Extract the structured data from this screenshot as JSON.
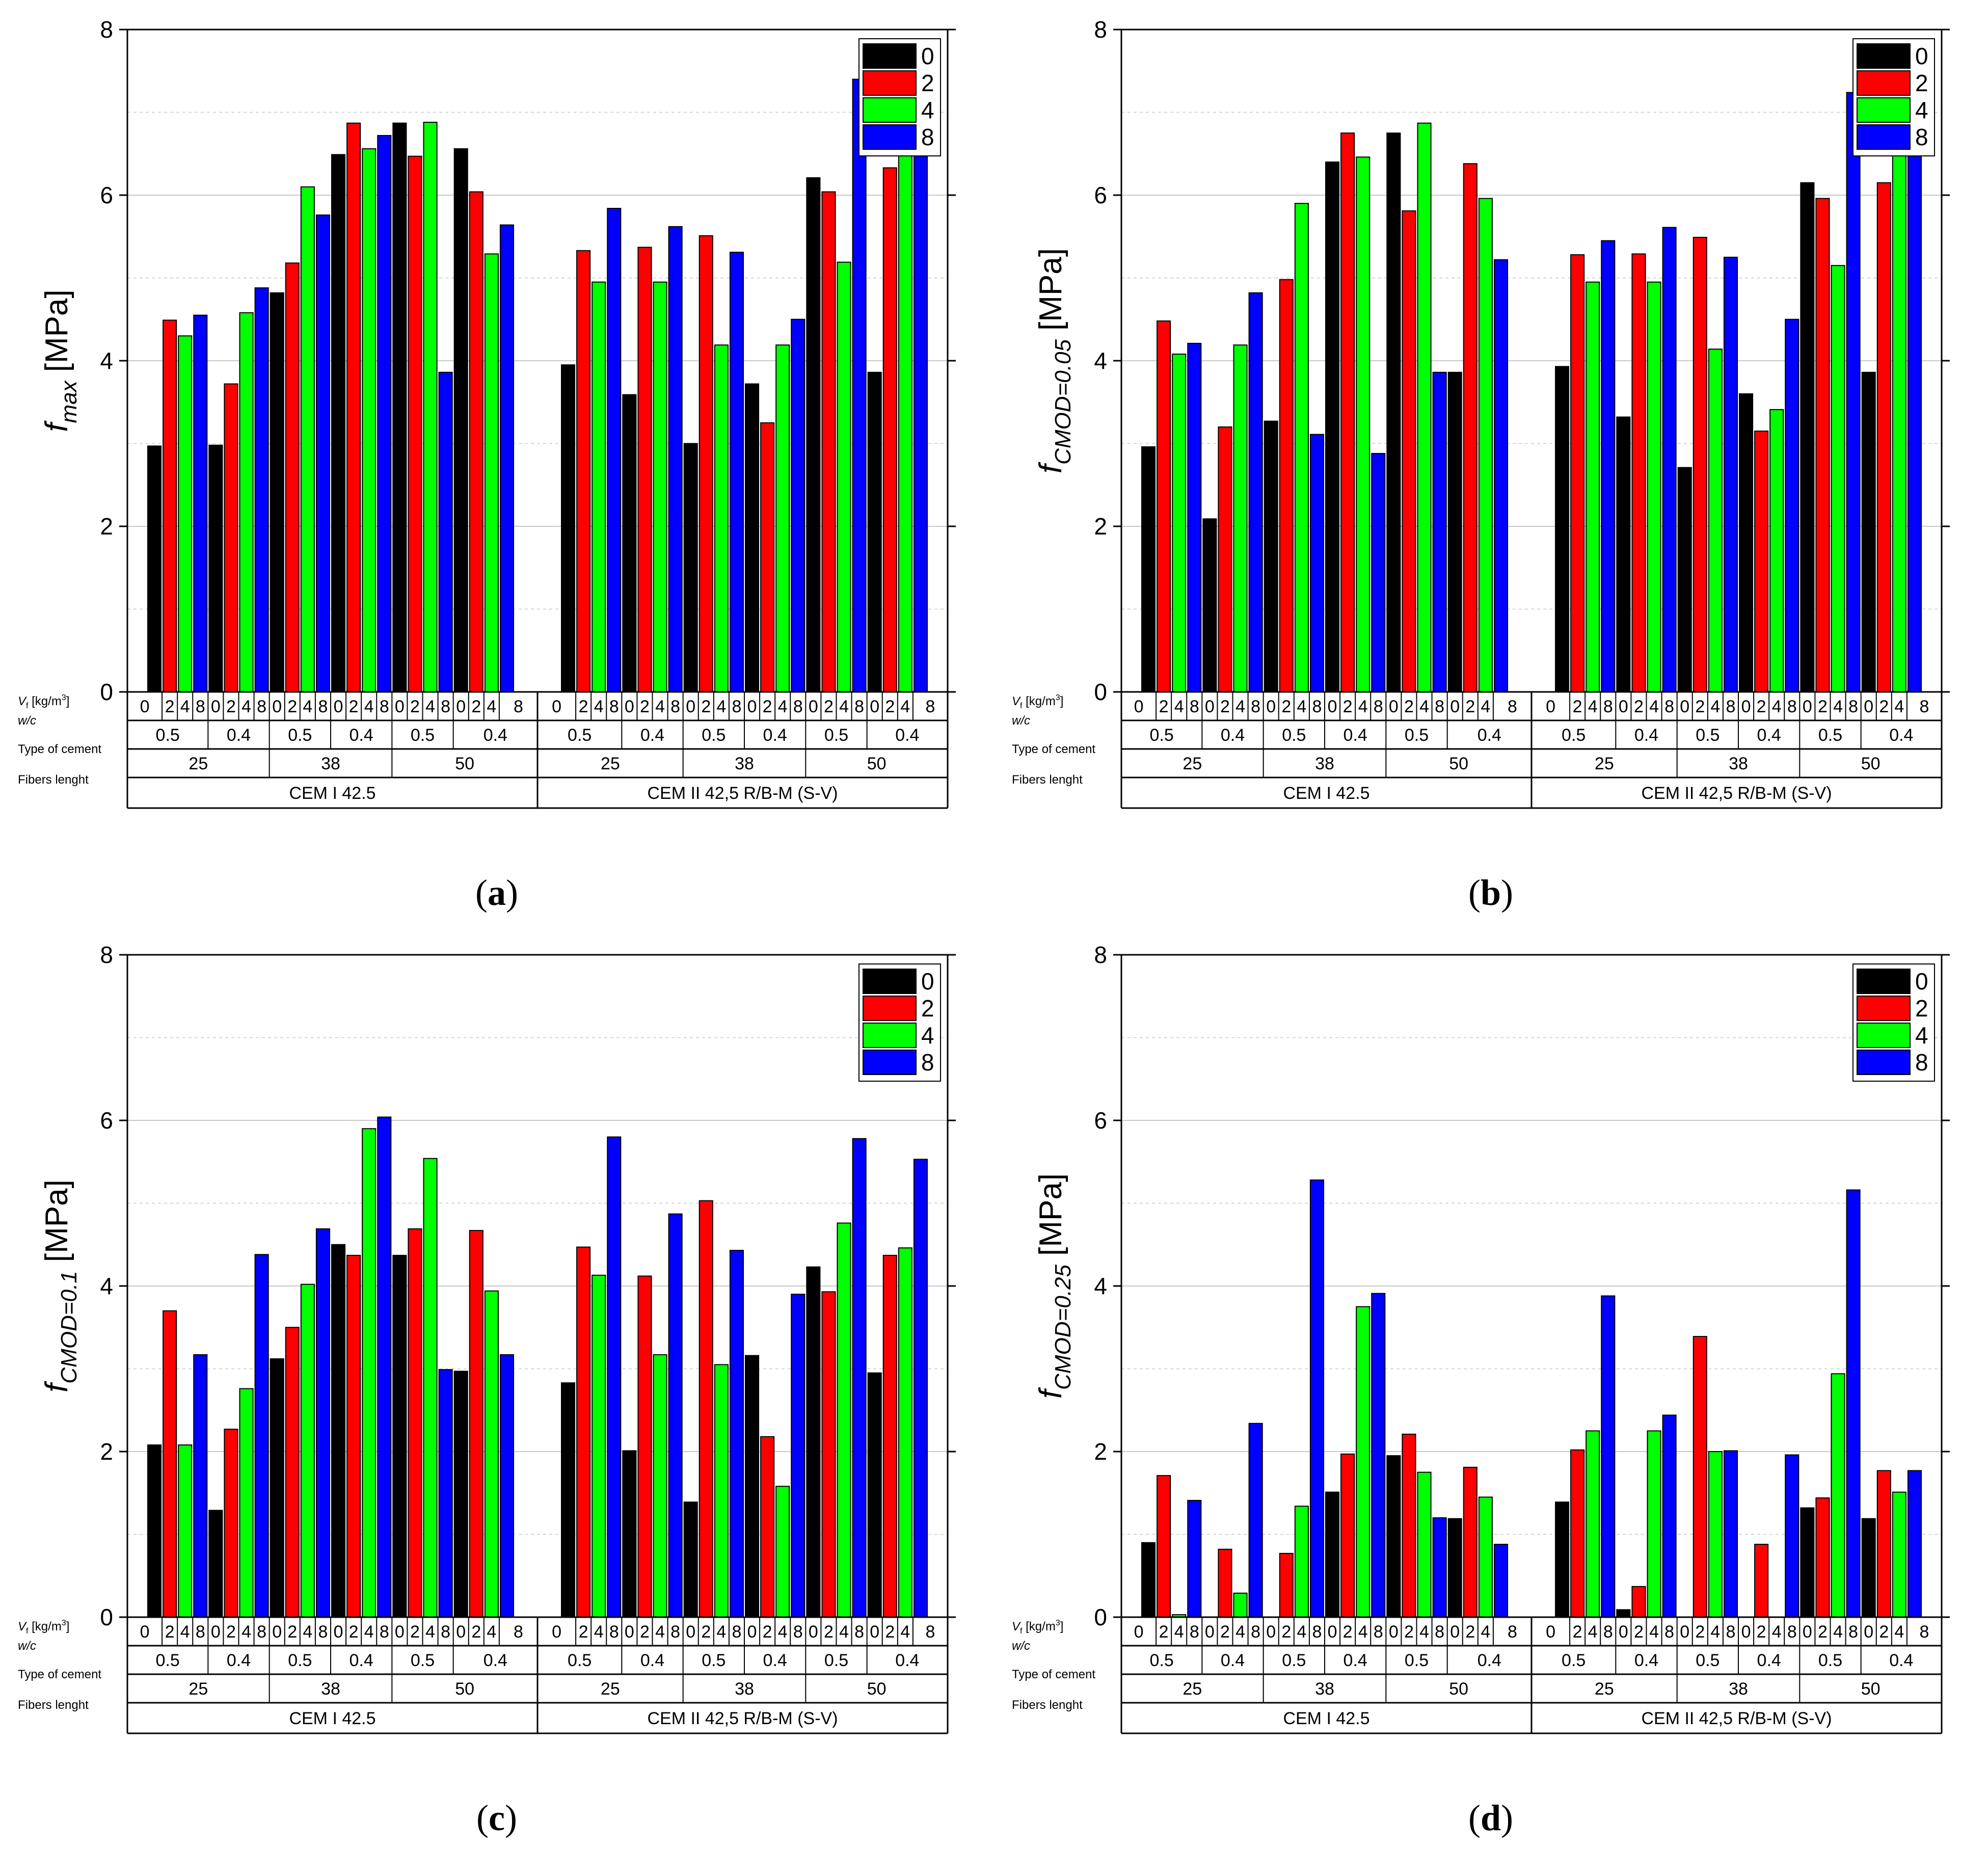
{
  "figure": {
    "row_labels": {
      "vf": "V",
      "vf_sub": "f",
      "vf_unit": " [kg/m",
      "vf_sup": "3",
      "vf_close": "]",
      "wc": "w/c",
      "type": "Type of cement",
      "fibers": "Fibers lenght"
    },
    "fiber_headers": [
      "0",
      "2",
      "4",
      "8"
    ],
    "group_headers": [
      "0",
      "2",
      "4",
      "8",
      "0",
      "2",
      "4",
      "8",
      "0",
      "2",
      "4",
      "8",
      "0",
      "2",
      "4",
      "8",
      "0",
      "2",
      "4",
      "8",
      "0",
      "2",
      "4",
      "8"
    ],
    "wc_values": [
      "0.5",
      "0.4",
      "0.5",
      "0.4",
      "0.5",
      "0.4"
    ],
    "fiber_lengths": [
      "25",
      "38",
      "50"
    ],
    "cements": [
      "CEM I 42.5",
      "CEM II 42,5 R/B-M (S-V)"
    ],
    "colors": {
      "0": "#000000",
      "2": "#ff0000",
      "4": "#00ff00",
      "8": "#0000ff"
    }
  },
  "chart_data": [
    {
      "type": "bar",
      "caption": "(a)",
      "ylabel_main": "f",
      "ylabel_sub": "max",
      "ylabel_unit": " [MPa]",
      "ylim": [
        0,
        8
      ],
      "yticks": [
        "0",
        "2",
        "4",
        "6",
        "8"
      ],
      "legend": [
        "0",
        "2",
        "4",
        "8"
      ],
      "legend_position": "top-right",
      "series": [
        {
          "name": "CEM I 42.5",
          "values": [
            2.97,
            4.49,
            4.3,
            4.55,
            2.98,
            3.72,
            4.58,
            4.88,
            4.82,
            5.18,
            6.1,
            5.76,
            6.49,
            6.87,
            6.56,
            6.72,
            6.87,
            6.47,
            6.88,
            3.86,
            6.56,
            6.04,
            5.29,
            5.64
          ]
        },
        {
          "name": "CEM II 42,5 R/B-M (S-V)",
          "values": [
            3.95,
            5.33,
            4.95,
            5.84,
            3.59,
            5.37,
            4.95,
            5.62,
            3.0,
            5.51,
            4.19,
            5.31,
            3.72,
            3.25,
            4.19,
            4.5,
            6.21,
            6.04,
            5.19,
            7.4,
            3.86,
            6.33,
            6.8,
            6.92
          ]
        }
      ]
    },
    {
      "type": "bar",
      "caption": "(b)",
      "ylabel_main": "f",
      "ylabel_sub": "CMOD=0.05",
      "ylabel_unit": " [MPa]",
      "ylim": [
        0,
        8
      ],
      "yticks": [
        "0",
        "2",
        "4",
        "6",
        "8"
      ],
      "legend": [
        "0",
        "2",
        "4",
        "8"
      ],
      "legend_position": "top-right",
      "series": [
        {
          "name": "CEM I 42.5",
          "values": [
            2.96,
            4.48,
            4.08,
            4.21,
            2.09,
            3.2,
            4.19,
            4.82,
            3.27,
            4.98,
            5.9,
            3.11,
            6.4,
            6.75,
            6.46,
            2.88,
            6.75,
            5.81,
            6.87,
            3.86,
            3.86,
            6.38,
            5.96,
            5.22
          ]
        },
        {
          "name": "CEM II 42,5 R/B-M (S-V)",
          "values": [
            3.93,
            5.28,
            4.95,
            5.45,
            3.32,
            5.29,
            4.95,
            5.61,
            2.71,
            5.49,
            4.14,
            5.25,
            3.6,
            3.15,
            3.41,
            4.5,
            6.15,
            5.96,
            5.15,
            7.24,
            3.86,
            6.15,
            6.8,
            6.9
          ]
        }
      ]
    },
    {
      "type": "bar",
      "caption": "(c)",
      "ylabel_main": "f",
      "ylabel_sub": "CMOD=0.1",
      "ylabel_unit": " [MPa]",
      "ylim": [
        0,
        8
      ],
      "yticks": [
        "0",
        "2",
        "4",
        "6",
        "8"
      ],
      "legend": [
        "0",
        "2",
        "4",
        "8"
      ],
      "legend_position": "top-right",
      "series": [
        {
          "name": "CEM I 42.5",
          "values": [
            2.08,
            3.7,
            2.08,
            3.17,
            1.29,
            2.27,
            2.76,
            4.38,
            3.12,
            3.5,
            4.02,
            4.69,
            4.5,
            4.37,
            5.9,
            6.04,
            4.37,
            4.69,
            5.54,
            2.99,
            2.97,
            4.67,
            3.94,
            3.17
          ]
        },
        {
          "name": "CEM II 42,5 R/B-M (S-V)",
          "values": [
            2.83,
            4.47,
            4.13,
            5.8,
            2.01,
            4.12,
            3.17,
            4.87,
            1.39,
            5.03,
            3.05,
            4.43,
            3.16,
            2.18,
            1.58,
            3.9,
            4.23,
            3.93,
            4.76,
            5.78,
            2.95,
            4.37,
            4.46,
            5.53
          ]
        }
      ]
    },
    {
      "type": "bar",
      "caption": "(d)",
      "ylabel_main": "f",
      "ylabel_sub": "CMOD=0.25",
      "ylabel_unit": " [MPa]",
      "ylim": [
        0,
        8
      ],
      "yticks": [
        "0",
        "2",
        "4",
        "6",
        "8"
      ],
      "legend": [
        "0",
        "2",
        "4",
        "8"
      ],
      "legend_position": "top-right",
      "series": [
        {
          "name": "CEM I 42.5",
          "values": [
            0.9,
            1.71,
            0.03,
            1.41,
            0.0,
            0.82,
            0.29,
            2.34,
            0.0,
            0.77,
            1.34,
            5.28,
            1.51,
            1.97,
            3.75,
            3.91,
            1.95,
            2.21,
            1.75,
            1.2,
            1.19,
            1.81,
            1.45,
            0.88
          ]
        },
        {
          "name": "CEM II 42,5 R/B-M (S-V)",
          "values": [
            1.39,
            2.02,
            2.25,
            3.88,
            0.09,
            0.37,
            2.25,
            2.44,
            0.0,
            3.39,
            2.0,
            2.01,
            0.0,
            0.88,
            0.0,
            1.96,
            1.32,
            1.44,
            2.94,
            5.16,
            1.19,
            1.77,
            1.51,
            1.77
          ]
        }
      ]
    }
  ]
}
